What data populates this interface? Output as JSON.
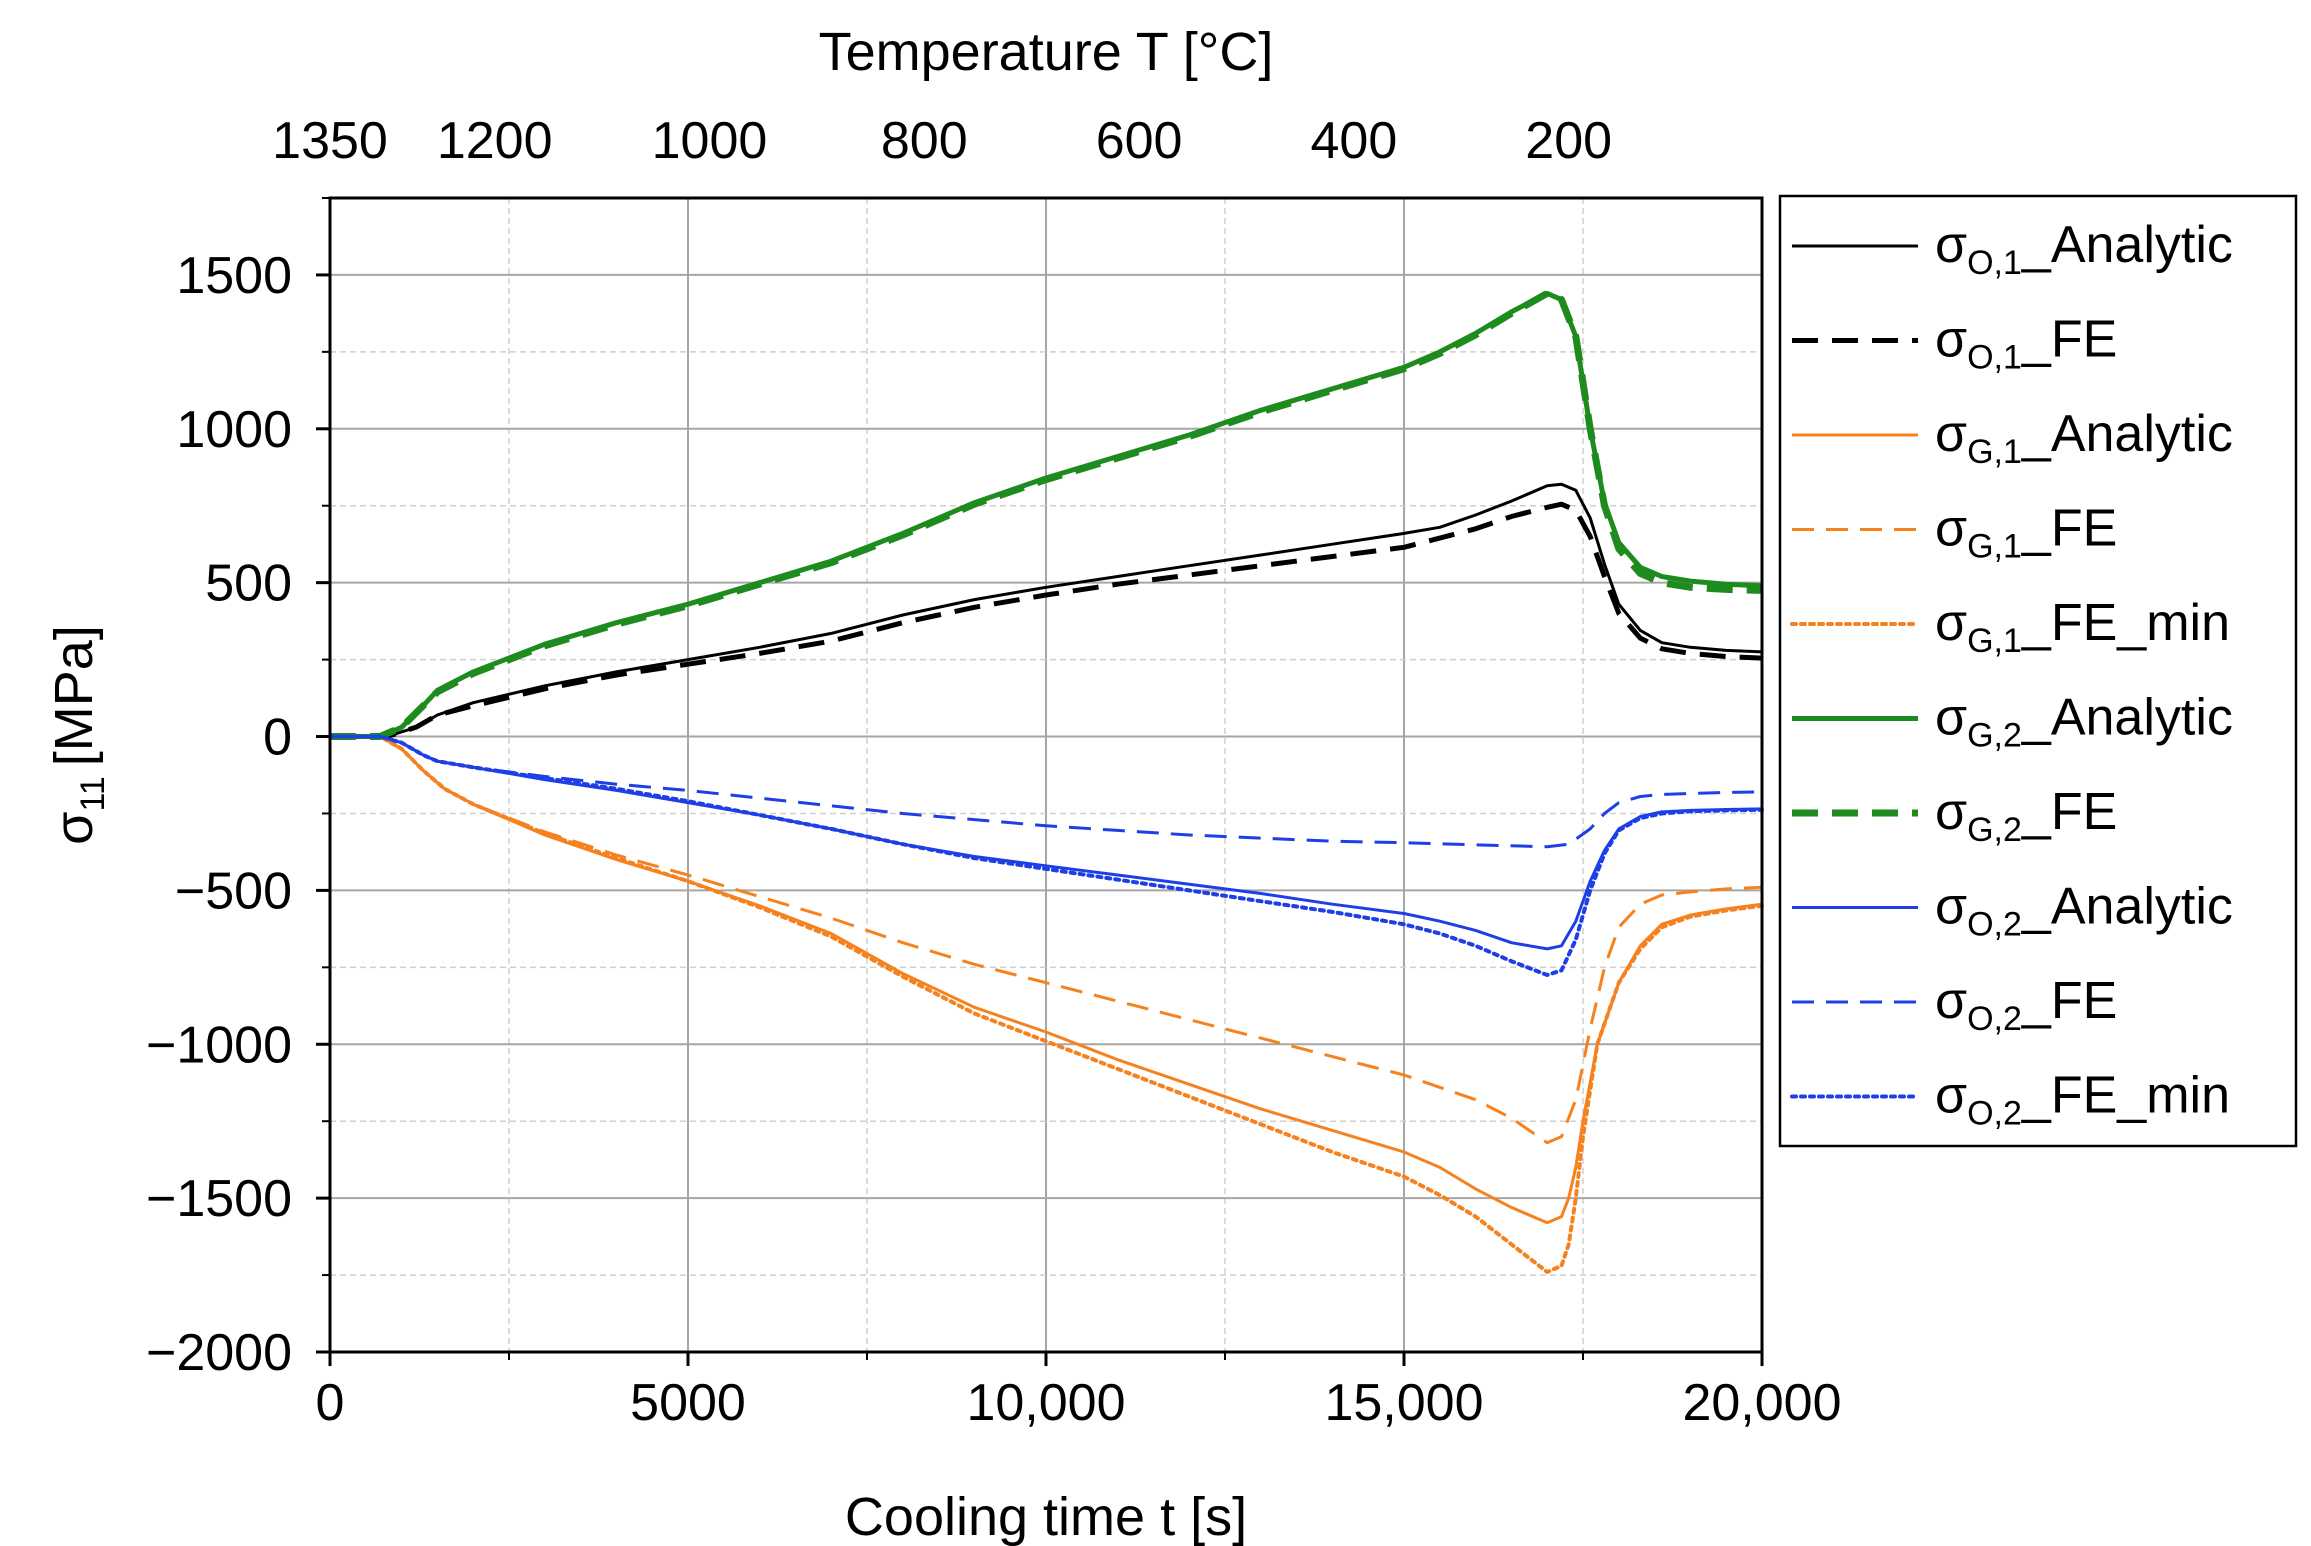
{
  "chart_data": {
    "type": "line",
    "title": "",
    "xlabel": "Cooling time t [s]",
    "ylabel_main": "σ",
    "ylabel_sub": "11",
    "ylabel_unit": "[MPa]",
    "x2label": "Temperature T [°C]",
    "xlim": [
      0,
      20000
    ],
    "ylim": [
      -2000,
      1750
    ],
    "x_ticks": [
      {
        "value": 0,
        "label": "0"
      },
      {
        "value": 5000,
        "label": "5000"
      },
      {
        "value": 10000,
        "label": "10,000"
      },
      {
        "value": 15000,
        "label": "15,000"
      },
      {
        "value": 20000,
        "label": "20,000"
      }
    ],
    "y_ticks": [
      {
        "value": 1500,
        "label": "1500"
      },
      {
        "value": 1000,
        "label": "1000"
      },
      {
        "value": 500,
        "label": "500"
      },
      {
        "value": 0,
        "label": "0"
      },
      {
        "value": -500,
        "label": "−500"
      },
      {
        "value": -1000,
        "label": "−1000"
      },
      {
        "value": -1500,
        "label": "−1500"
      },
      {
        "value": -2000,
        "label": "−2000"
      }
    ],
    "top_ticks": [
      {
        "value": 0,
        "label": "1350"
      },
      {
        "value": 2300,
        "label": "1200"
      },
      {
        "value": 5300,
        "label": "1000"
      },
      {
        "value": 8300,
        "label": "800"
      },
      {
        "value": 11300,
        "label": "600"
      },
      {
        "value": 14300,
        "label": "400"
      },
      {
        "value": 17300,
        "label": "200"
      }
    ],
    "grid": true,
    "legend_position": "right",
    "series": [
      {
        "name_main": "σ",
        "name_sub": "O,1",
        "name_suffix": "_Analytic",
        "color": "#000000",
        "style": "solid",
        "width": 3,
        "x": [
          0,
          800,
          1200,
          1500,
          2000,
          3000,
          4000,
          5000,
          6000,
          7000,
          8000,
          9000,
          10000,
          11000,
          12000,
          13000,
          14000,
          15000,
          15500,
          16000,
          16500,
          17000,
          17200,
          17400,
          17600,
          17800,
          18000,
          18300,
          18600,
          19000,
          19500,
          20000
        ],
        "y": [
          0,
          0,
          30,
          70,
          110,
          165,
          210,
          250,
          290,
          335,
          395,
          445,
          485,
          520,
          555,
          590,
          625,
          660,
          680,
          720,
          765,
          815,
          820,
          800,
          710,
          560,
          430,
          345,
          305,
          290,
          280,
          275
        ]
      },
      {
        "name_main": "σ",
        "name_sub": "O,1",
        "name_suffix": "_FE",
        "color": "#000000",
        "style": "dashed",
        "width": 5,
        "x": [
          0,
          800,
          1200,
          1500,
          2000,
          3000,
          4000,
          5000,
          6000,
          7000,
          8000,
          9000,
          10000,
          11000,
          12000,
          13000,
          14000,
          15000,
          16000,
          16500,
          17000,
          17200,
          17400,
          17600,
          17800,
          18000,
          18300,
          18600,
          19000,
          19500,
          20000
        ],
        "y": [
          0,
          0,
          30,
          70,
          100,
          155,
          200,
          235,
          270,
          310,
          370,
          420,
          460,
          495,
          525,
          555,
          585,
          615,
          675,
          715,
          745,
          755,
          735,
          650,
          520,
          400,
          320,
          285,
          270,
          260,
          255
        ]
      },
      {
        "name_main": "σ",
        "name_sub": "G,1",
        "name_suffix": "_Analytic",
        "color": "#F5821F",
        "style": "solid",
        "width": 3,
        "x": [
          0,
          700,
          1000,
          1300,
          1600,
          2000,
          3000,
          4000,
          5000,
          6000,
          7000,
          8000,
          9000,
          10000,
          11000,
          12000,
          13000,
          14000,
          15000,
          15500,
          16000,
          16500,
          17000,
          17200,
          17300,
          17400,
          17500,
          17700,
          18000,
          18300,
          18600,
          19000,
          19500,
          20000
        ],
        "y": [
          0,
          0,
          -40,
          -110,
          -170,
          -220,
          -320,
          -400,
          -470,
          -550,
          -640,
          -770,
          -880,
          -960,
          -1050,
          -1130,
          -1210,
          -1280,
          -1350,
          -1400,
          -1470,
          -1530,
          -1580,
          -1560,
          -1500,
          -1400,
          -1250,
          -1000,
          -800,
          -680,
          -610,
          -580,
          -560,
          -545
        ]
      },
      {
        "name_main": "σ",
        "name_sub": "G,1",
        "name_suffix": "_FE",
        "color": "#F5821F",
        "style": "dashed",
        "width": 3,
        "x": [
          0,
          700,
          1000,
          1300,
          1600,
          2000,
          3000,
          4000,
          5000,
          6000,
          7000,
          8000,
          9000,
          10000,
          11000,
          12000,
          13000,
          14000,
          15000,
          16000,
          16500,
          17000,
          17200,
          17400,
          17600,
          17800,
          18000,
          18300,
          18600,
          19000,
          19500,
          20000
        ],
        "y": [
          0,
          0,
          -40,
          -110,
          -170,
          -220,
          -310,
          -385,
          -450,
          -520,
          -590,
          -670,
          -740,
          -800,
          -860,
          -920,
          -980,
          -1040,
          -1100,
          -1180,
          -1240,
          -1320,
          -1300,
          -1180,
          -950,
          -750,
          -620,
          -545,
          -515,
          -505,
          -495,
          -490
        ]
      },
      {
        "name_main": "σ",
        "name_sub": "G,1",
        "name_suffix": "_FE_min",
        "color": "#F5821F",
        "style": "dotted",
        "width": 4,
        "x": [
          0,
          700,
          1000,
          1300,
          1600,
          2000,
          3000,
          4000,
          5000,
          6000,
          7000,
          8000,
          9000,
          10000,
          11000,
          12000,
          13000,
          14000,
          15000,
          15500,
          16000,
          16500,
          17000,
          17200,
          17300,
          17400,
          17500,
          17700,
          18000,
          18300,
          18600,
          19000,
          19500,
          20000
        ],
        "y": [
          0,
          0,
          -40,
          -110,
          -170,
          -220,
          -315,
          -395,
          -470,
          -555,
          -650,
          -780,
          -900,
          -990,
          -1080,
          -1170,
          -1260,
          -1350,
          -1430,
          -1490,
          -1560,
          -1650,
          -1740,
          -1720,
          -1650,
          -1500,
          -1300,
          -1000,
          -800,
          -690,
          -620,
          -585,
          -565,
          -550
        ]
      },
      {
        "name_main": "σ",
        "name_sub": "G,2",
        "name_suffix": "_Analytic",
        "color": "#1E8B1E",
        "style": "solid",
        "width": 5,
        "x": [
          0,
          700,
          1000,
          1300,
          1500,
          2000,
          3000,
          4000,
          5000,
          6000,
          7000,
          8000,
          9000,
          10000,
          11000,
          12000,
          13000,
          14000,
          15000,
          15500,
          16000,
          16500,
          17000,
          17200,
          17400,
          17600,
          17800,
          18000,
          18300,
          18600,
          19000,
          19500,
          20000
        ],
        "y": [
          0,
          0,
          30,
          100,
          150,
          210,
          300,
          370,
          430,
          500,
          570,
          660,
          760,
          840,
          910,
          980,
          1060,
          1130,
          1200,
          1250,
          1310,
          1380,
          1440,
          1420,
          1300,
          1000,
          760,
          630,
          550,
          520,
          505,
          495,
          490
        ]
      },
      {
        "name_main": "σ",
        "name_sub": "G,2",
        "name_suffix": "_FE",
        "color": "#1E8B1E",
        "style": "dashed",
        "width": 7,
        "x": [
          0,
          700,
          1000,
          1300,
          1500,
          2000,
          3000,
          4000,
          5000,
          6000,
          7000,
          8000,
          9000,
          10000,
          11000,
          12000,
          13000,
          14000,
          15000,
          15500,
          16000,
          16500,
          17000,
          17200,
          17400,
          17600,
          17800,
          18000,
          18300,
          18600,
          19000,
          19500,
          20000
        ],
        "y": [
          0,
          0,
          30,
          100,
          145,
          205,
          295,
          365,
          425,
          495,
          565,
          655,
          755,
          835,
          905,
          975,
          1055,
          1125,
          1195,
          1245,
          1305,
          1375,
          1440,
          1420,
          1300,
          1000,
          750,
          610,
          530,
          500,
          485,
          478,
          475
        ]
      },
      {
        "name_main": "σ",
        "name_sub": "O,2",
        "name_suffix": "_Analytic",
        "color": "#1F3FE6",
        "style": "solid",
        "width": 3,
        "x": [
          0,
          700,
          1000,
          1300,
          1500,
          2000,
          3000,
          4000,
          5000,
          6000,
          7000,
          8000,
          9000,
          10000,
          11000,
          12000,
          13000,
          14000,
          15000,
          15500,
          16000,
          16500,
          17000,
          17200,
          17400,
          17600,
          17800,
          18000,
          18300,
          18600,
          19000,
          19500,
          20000
        ],
        "y": [
          0,
          0,
          -20,
          -60,
          -80,
          -100,
          -140,
          -175,
          -215,
          -255,
          -300,
          -350,
          -390,
          -420,
          -450,
          -480,
          -510,
          -545,
          -575,
          -600,
          -630,
          -670,
          -690,
          -680,
          -600,
          -470,
          -370,
          -300,
          -260,
          -245,
          -240,
          -237,
          -235
        ]
      },
      {
        "name_main": "σ",
        "name_sub": "O,2",
        "name_suffix": "_FE",
        "color": "#1F3FE6",
        "style": "dashed",
        "width": 3,
        "x": [
          0,
          700,
          1000,
          1300,
          1500,
          2000,
          3000,
          4000,
          5000,
          6000,
          7000,
          8000,
          9000,
          10000,
          11000,
          12000,
          13000,
          14000,
          15000,
          16000,
          17000,
          17300,
          17600,
          17800,
          18000,
          18300,
          18600,
          19000,
          19500,
          20000
        ],
        "y": [
          0,
          0,
          -20,
          -60,
          -80,
          -100,
          -130,
          -155,
          -175,
          -200,
          -225,
          -250,
          -270,
          -290,
          -305,
          -320,
          -330,
          -340,
          -345,
          -352,
          -358,
          -350,
          -300,
          -250,
          -215,
          -195,
          -188,
          -185,
          -182,
          -180
        ]
      },
      {
        "name_main": "σ",
        "name_sub": "O,2",
        "name_suffix": "_FE_min",
        "color": "#1F3FE6",
        "style": "dotted",
        "width": 4,
        "x": [
          0,
          700,
          1000,
          1300,
          1500,
          2000,
          3000,
          4000,
          5000,
          6000,
          7000,
          8000,
          9000,
          10000,
          11000,
          12000,
          13000,
          14000,
          15000,
          15500,
          16000,
          16500,
          17000,
          17200,
          17400,
          17600,
          17800,
          18000,
          18300,
          18600,
          19000,
          19500,
          20000
        ],
        "y": [
          0,
          0,
          -20,
          -60,
          -80,
          -100,
          -135,
          -170,
          -210,
          -255,
          -300,
          -350,
          -395,
          -430,
          -465,
          -500,
          -535,
          -570,
          -610,
          -640,
          -680,
          -730,
          -775,
          -760,
          -660,
          -500,
          -380,
          -305,
          -265,
          -250,
          -243,
          -240,
          -238
        ]
      }
    ]
  }
}
